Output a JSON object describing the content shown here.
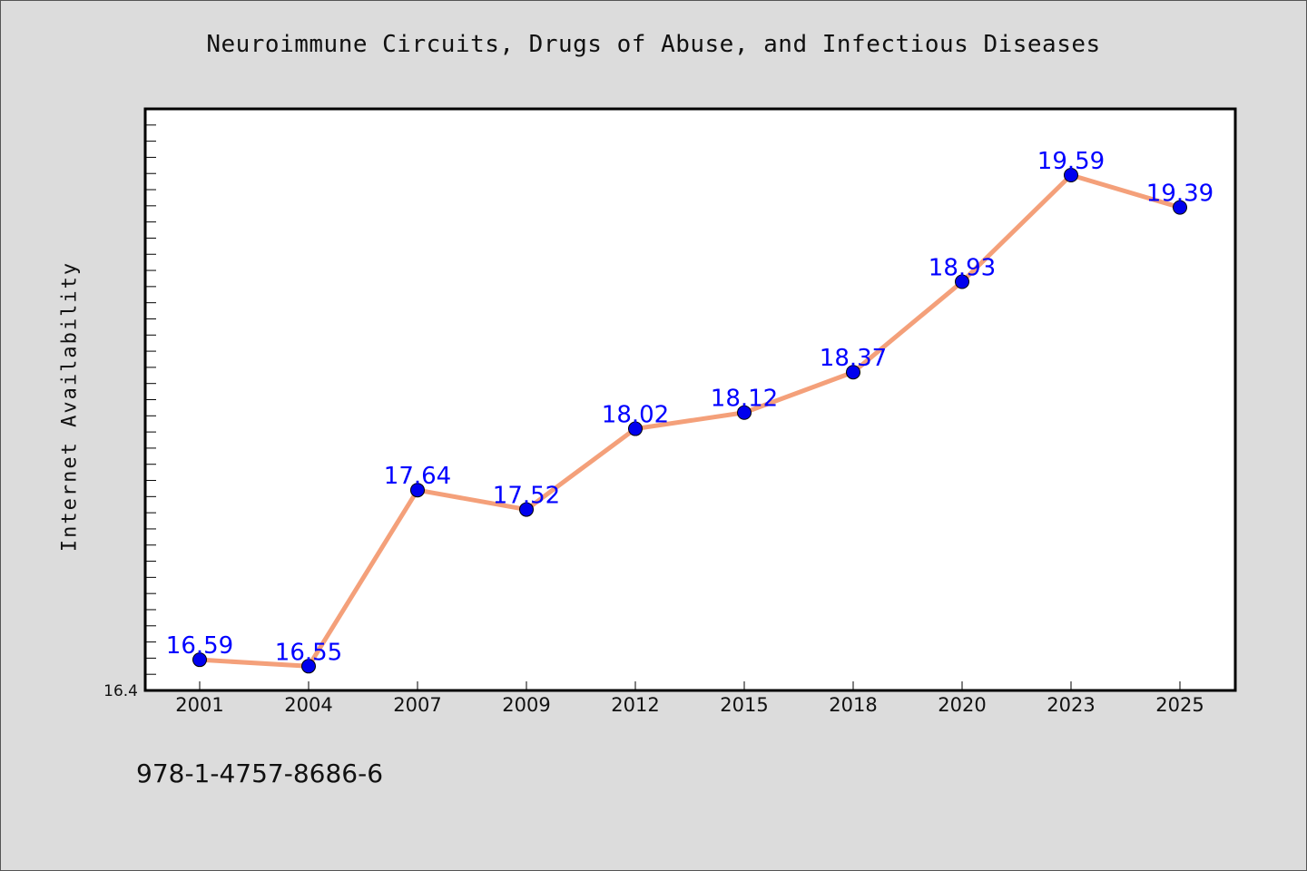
{
  "chart_data": {
    "type": "line",
    "title": "Neuroimmune Circuits, Drugs of Abuse, and Infectious Diseases",
    "xlabel": "",
    "ylabel": "Internet Availability",
    "categories": [
      "2001",
      "2004",
      "2007",
      "2009",
      "2012",
      "2015",
      "2018",
      "2020",
      "2023",
      "2025"
    ],
    "series": [
      {
        "values": [
          16.59,
          16.55,
          17.64,
          17.52,
          18.02,
          18.12,
          18.37,
          18.93,
          19.59,
          19.39
        ]
      }
    ],
    "data_labels": [
      "16.59",
      "16.55",
      "17.64",
      "17.52",
      "18.02",
      "18.12",
      "18.37",
      "18.93",
      "19.59",
      "19.39"
    ],
    "ylim": [
      16.4,
      20.0
    ],
    "y_tick_label": "16.4",
    "grid": false,
    "legend": "none",
    "colors": {
      "line": "#f4a07a",
      "marker": "#0000ee",
      "data_label": "#0000ff",
      "background": "#dcdcdc",
      "plot_background": "#ffffff"
    }
  },
  "footer": {
    "isbn": "978-1-4757-8686-6"
  }
}
